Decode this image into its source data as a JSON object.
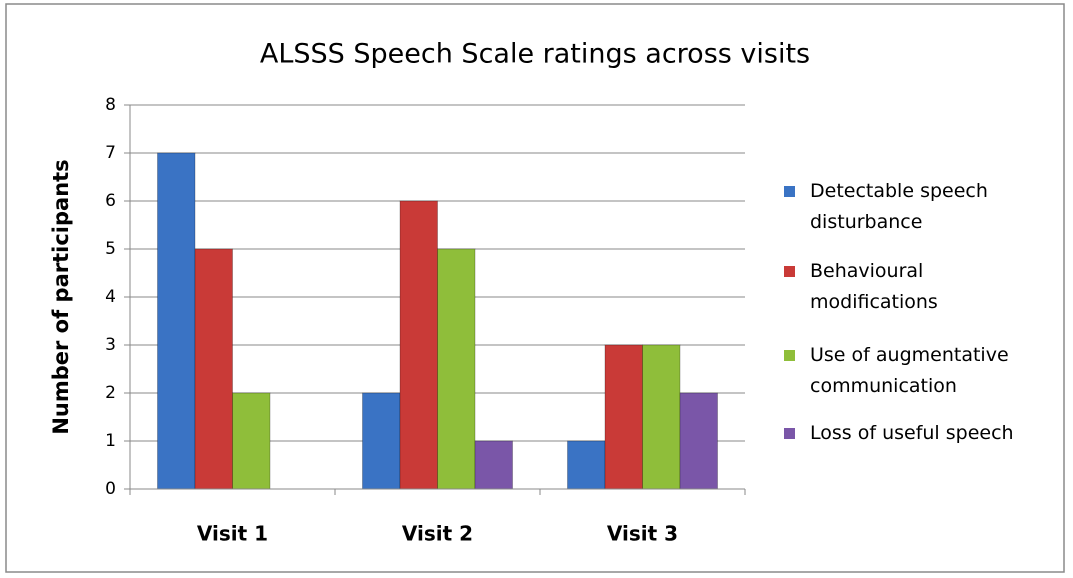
{
  "chart_data": {
    "type": "bar",
    "title": "ALSSS Speech Scale ratings across visits",
    "y_label": "Number of participants",
    "categories": [
      "Visit 1",
      "Visit 2",
      "Visit 3"
    ],
    "series": [
      {
        "name": "Detectable speech disturbance",
        "color": "#3a73c4",
        "values": [
          7,
          2,
          1
        ]
      },
      {
        "name": "Behavioural modifications",
        "color": "#c93a37",
        "values": [
          5,
          6,
          3
        ]
      },
      {
        "name": "Use of augmentative communication",
        "color": "#8fbe3a",
        "values": [
          2,
          5,
          3
        ]
      },
      {
        "name": "Loss of useful speech",
        "color": "#7a56a8",
        "values": [
          0,
          1,
          2
        ]
      }
    ],
    "ylim": [
      0,
      8
    ],
    "yticks": [
      0,
      1,
      2,
      3,
      4,
      5,
      6,
      7,
      8
    ],
    "grid": true,
    "legend": "right"
  }
}
